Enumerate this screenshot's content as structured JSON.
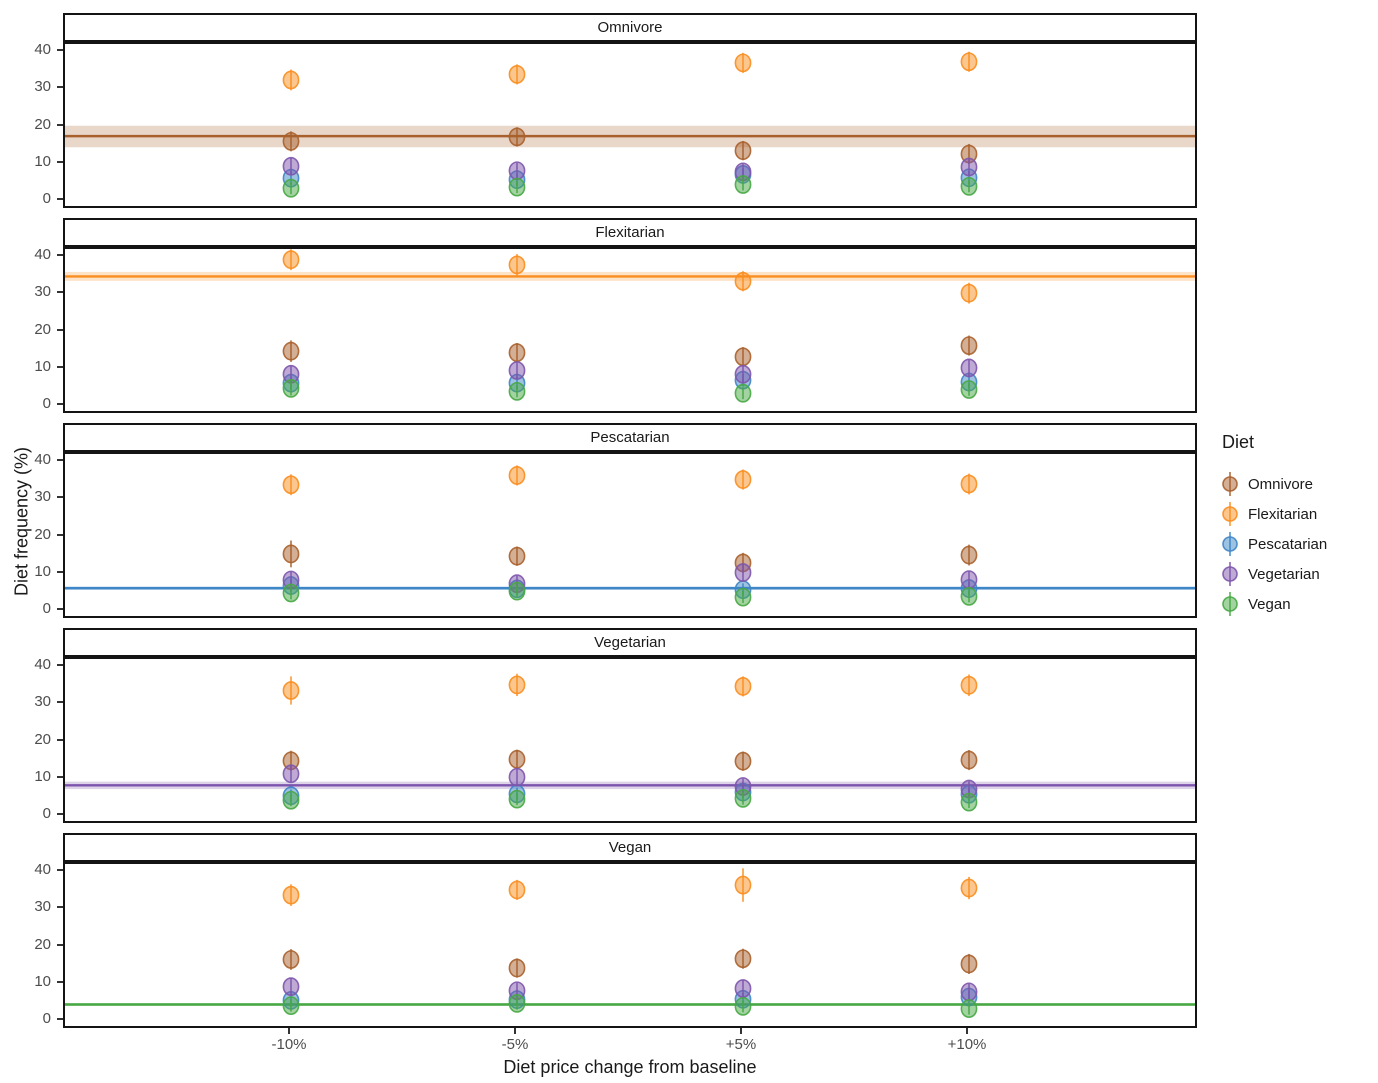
{
  "figure": {
    "background": "#ffffff"
  },
  "legend": {
    "title": "Diet",
    "entries": [
      {
        "label": "Omnivore",
        "color": "#A8602C"
      },
      {
        "label": "Flexitarian",
        "color": "#F98E20"
      },
      {
        "label": "Pescatarian",
        "color": "#3E86C6"
      },
      {
        "label": "Vegetarian",
        "color": "#7D55AC"
      },
      {
        "label": "Vegan",
        "color": "#47A844"
      }
    ]
  },
  "chart_data": {
    "type": "scatter",
    "title": "",
    "xlabel": "Diet price change from baseline",
    "ylabel": "Diet frequency (%)",
    "x_categories": [
      "-10%",
      "-5%",
      "+5%",
      "+10%"
    ],
    "ylim": [
      0,
      43
    ],
    "yticks": [
      0,
      10,
      20,
      30,
      40
    ],
    "grid": false,
    "legend_position": "right",
    "point_alpha": 0.5,
    "facet_note": "each panel = price change applied to that diet; horizontal line + ribbon = baseline frequency of the faceted diet",
    "facets": [
      {
        "title": "Omnivore",
        "baseline": {
          "mean": 16.9,
          "lower": 13.9,
          "upper": 19.7
        },
        "series": [
          {
            "name": "Omnivore",
            "values": [
              15.5,
              16.7,
              13.0,
              12.1
            ],
            "ci": [
              2.7,
              2.6,
              2.6,
              2.7
            ]
          },
          {
            "name": "Flexitarian",
            "values": [
              32.0,
              33.5,
              36.6,
              36.9
            ],
            "ci": [
              2.8,
              2.7,
              2.7,
              2.7
            ]
          },
          {
            "name": "Pescatarian",
            "values": [
              5.6,
              5.2,
              6.6,
              5.7
            ],
            "ci": [
              1.8,
              1.7,
              1.7,
              1.8
            ]
          },
          {
            "name": "Vegetarian",
            "values": [
              8.8,
              7.6,
              7.3,
              8.6
            ],
            "ci": [
              2.2,
              2.1,
              2.1,
              2.2
            ]
          },
          {
            "name": "Vegan",
            "values": [
              2.9,
              3.2,
              3.9,
              3.4
            ],
            "ci": [
              1.6,
              1.6,
              1.6,
              1.6
            ]
          }
        ]
      },
      {
        "title": "Flexitarian",
        "baseline": {
          "mean": 34.3,
          "lower": 33.1,
          "upper": 35.5
        },
        "series": [
          {
            "name": "Omnivore",
            "values": [
              14.2,
              13.8,
              12.7,
              15.7
            ],
            "ci": [
              2.9,
              2.6,
              2.6,
              2.7
            ]
          },
          {
            "name": "Flexitarian",
            "values": [
              38.8,
              37.4,
              33.0,
              29.8
            ],
            "ci": [
              2.8,
              2.9,
              2.7,
              2.8
            ]
          },
          {
            "name": "Pescatarian",
            "values": [
              5.6,
              5.6,
              6.4,
              5.9
            ],
            "ci": [
              1.8,
              1.7,
              1.7,
              1.8
            ]
          },
          {
            "name": "Vegetarian",
            "values": [
              8.0,
              9.0,
              8.0,
              9.7
            ],
            "ci": [
              2.2,
              2.1,
              2.1,
              2.2
            ]
          },
          {
            "name": "Vegan",
            "values": [
              4.2,
              3.4,
              2.9,
              3.9
            ],
            "ci": [
              1.9,
              1.6,
              1.6,
              1.7
            ]
          }
        ]
      },
      {
        "title": "Pescatarian",
        "baseline": {
          "mean": 5.6,
          "lower": 5.1,
          "upper": 6.1
        },
        "series": [
          {
            "name": "Omnivore",
            "values": [
              14.8,
              14.2,
              12.4,
              14.5
            ],
            "ci": [
              3.6,
              2.6,
              2.7,
              2.8
            ]
          },
          {
            "name": "Flexitarian",
            "values": [
              33.4,
              35.9,
              34.8,
              33.6
            ],
            "ci": [
              2.8,
              2.7,
              2.7,
              2.8
            ]
          },
          {
            "name": "Pescatarian",
            "values": [
              6.3,
              5.4,
              5.2,
              5.5
            ],
            "ci": [
              1.8,
              1.7,
              1.7,
              1.8
            ]
          },
          {
            "name": "Vegetarian",
            "values": [
              7.8,
              6.8,
              9.8,
              7.9
            ],
            "ci": [
              2.2,
              2.1,
              2.2,
              2.2
            ]
          },
          {
            "name": "Vegan",
            "values": [
              4.3,
              4.8,
              3.2,
              3.4
            ],
            "ci": [
              1.7,
              1.6,
              1.6,
              1.6
            ]
          }
        ]
      },
      {
        "title": "Vegetarian",
        "baseline": {
          "mean": 7.7,
          "lower": 6.7,
          "upper": 8.7
        },
        "series": [
          {
            "name": "Omnivore",
            "values": [
              14.3,
              14.7,
              14.2,
              14.5
            ],
            "ci": [
              2.7,
              2.6,
              2.6,
              2.7
            ]
          },
          {
            "name": "Flexitarian",
            "values": [
              33.2,
              34.7,
              34.3,
              34.6
            ],
            "ci": [
              3.8,
              3.0,
              2.7,
              2.9
            ]
          },
          {
            "name": "Pescatarian",
            "values": [
              4.9,
              5.4,
              5.9,
              5.3
            ],
            "ci": [
              1.7,
              1.7,
              1.7,
              1.7
            ]
          },
          {
            "name": "Vegetarian",
            "values": [
              10.8,
              9.9,
              7.4,
              6.7
            ],
            "ci": [
              2.3,
              2.2,
              2.1,
              2.1
            ]
          },
          {
            "name": "Vegan",
            "values": [
              3.7,
              4.0,
              4.2,
              3.2
            ],
            "ci": [
              1.6,
              1.6,
              1.7,
              1.6
            ]
          }
        ]
      },
      {
        "title": "Vegan",
        "baseline": {
          "mean": 3.9,
          "lower": 3.5,
          "upper": 4.3
        },
        "series": [
          {
            "name": "Omnivore",
            "values": [
              16.0,
              13.7,
              16.2,
              14.8
            ],
            "ci": [
              2.8,
              2.6,
              2.7,
              2.7
            ]
          },
          {
            "name": "Flexitarian",
            "values": [
              33.3,
              34.7,
              36.0,
              35.2
            ],
            "ci": [
              2.9,
              2.7,
              4.5,
              3.0
            ]
          },
          {
            "name": "Pescatarian",
            "values": [
              5.0,
              5.2,
              5.3,
              5.9
            ],
            "ci": [
              1.8,
              1.7,
              1.7,
              1.8
            ]
          },
          {
            "name": "Vegetarian",
            "values": [
              8.7,
              7.6,
              8.2,
              7.3
            ],
            "ci": [
              2.2,
              2.1,
              2.2,
              2.1
            ]
          },
          {
            "name": "Vegan",
            "values": [
              3.6,
              4.2,
              3.4,
              2.8
            ],
            "ci": [
              1.6,
              1.7,
              1.6,
              1.6
            ]
          }
        ]
      }
    ]
  }
}
